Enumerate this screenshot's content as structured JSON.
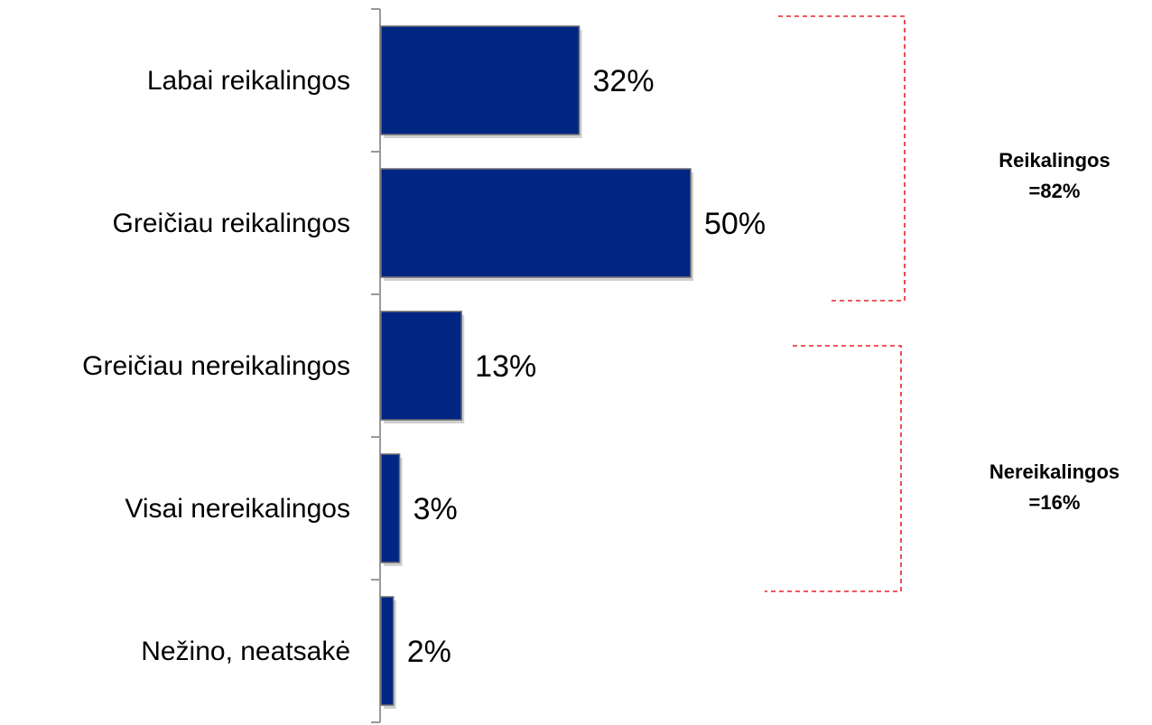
{
  "chart_data": {
    "type": "bar",
    "orientation": "horizontal",
    "categories": [
      "Labai reikalingos",
      "Greičiau reikalingos",
      "Greičiau nereikalingos",
      "Visai nereikalingos",
      "Nežino, neatsakė"
    ],
    "values": [
      32,
      50,
      13,
      3,
      2
    ],
    "value_labels": [
      "32%",
      "50%",
      "13%",
      "3%",
      "2%"
    ],
    "xlim": [
      0,
      100
    ],
    "grid": false,
    "legend": "none",
    "bar_color": "#002583",
    "bracket_color": "#e8202a",
    "groups": [
      {
        "label_line1": "Reikalingos",
        "label_line2": "=82%",
        "categories": [
          0,
          1
        ]
      },
      {
        "label_line1": "Nereikalingos",
        "label_line2": "=16%",
        "categories": [
          2,
          3
        ]
      }
    ]
  }
}
